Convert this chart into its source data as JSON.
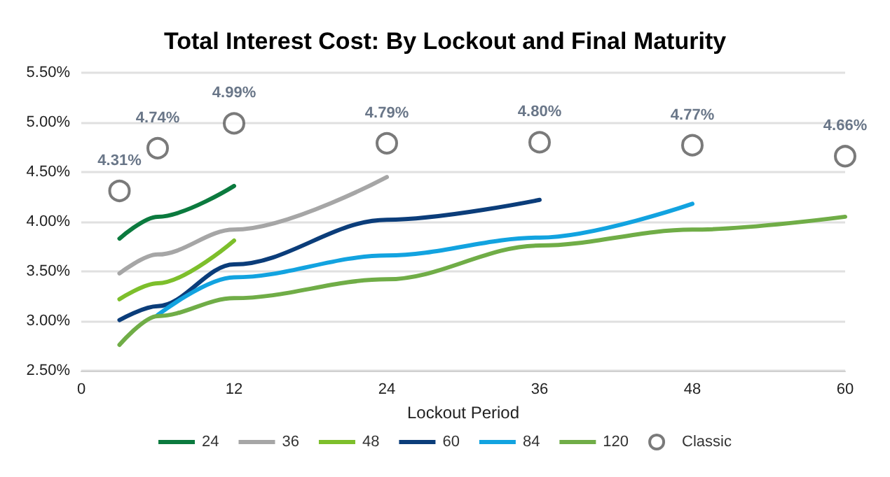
{
  "chart_data": {
    "type": "line",
    "title": "Total Interest Cost: By Lockout and Final Maturity",
    "xlabel": "Lockout Period",
    "xlim": [
      0,
      60
    ],
    "xticks": [
      0,
      12,
      24,
      36,
      48,
      60
    ],
    "ylim": [
      2.5,
      5.5
    ],
    "yticks": [
      {
        "value": 2.5,
        "label": "2.50%"
      },
      {
        "value": 3,
        "label": "3.00%"
      },
      {
        "value": 3.5,
        "label": "3.50%"
      },
      {
        "value": 4,
        "label": "4.00%"
      },
      {
        "value": 4.5,
        "label": "4.50%"
      },
      {
        "value": 5,
        "label": "5.00%"
      },
      {
        "value": 5.5,
        "label": "5.50%"
      }
    ],
    "grid": "y",
    "legend": "bottom",
    "line_style": "solid",
    "series": [
      {
        "name": "24",
        "color": "#0b7a3e",
        "marker": "none",
        "x": [
          3,
          6,
          12
        ],
        "values": [
          3.83,
          4.05,
          4.36
        ]
      },
      {
        "name": "36",
        "color": "#a6a6a6",
        "marker": "none",
        "x": [
          3,
          6,
          12,
          24
        ],
        "values": [
          3.48,
          3.67,
          3.92,
          4.45
        ]
      },
      {
        "name": "48",
        "color": "#7dbf2b",
        "marker": "none",
        "x": [
          3,
          6,
          12
        ],
        "values": [
          3.22,
          3.38,
          3.81
        ]
      },
      {
        "name": "60",
        "color": "#0b3d7a",
        "marker": "none",
        "x": [
          3,
          6,
          12,
          24,
          36
        ],
        "values": [
          3.01,
          3.15,
          3.57,
          4.02,
          4.22
        ]
      },
      {
        "name": "84",
        "color": "#12a3e0",
        "marker": "none",
        "x": [
          6,
          12,
          24,
          36,
          48
        ],
        "values": [
          3.06,
          3.44,
          3.66,
          3.84,
          4.18
        ]
      },
      {
        "name": "120",
        "color": "#70ad47",
        "marker": "none",
        "x": [
          3,
          6,
          12,
          24,
          36,
          48,
          60
        ],
        "values": [
          2.76,
          3.05,
          3.23,
          3.42,
          3.76,
          3.92,
          4.05
        ]
      },
      {
        "name": "Classic",
        "type": "scatter",
        "color": "#595959",
        "marker": "circle",
        "value_labels": [
          "4.31%",
          "4.74%",
          "4.99%",
          "4.79%",
          "4.80%",
          "4.77%",
          "4.66%"
        ],
        "x": [
          3,
          6,
          12,
          24,
          36,
          48,
          60
        ],
        "values": [
          4.31,
          4.74,
          4.99,
          4.79,
          4.8,
          4.77,
          4.66
        ]
      }
    ]
  }
}
